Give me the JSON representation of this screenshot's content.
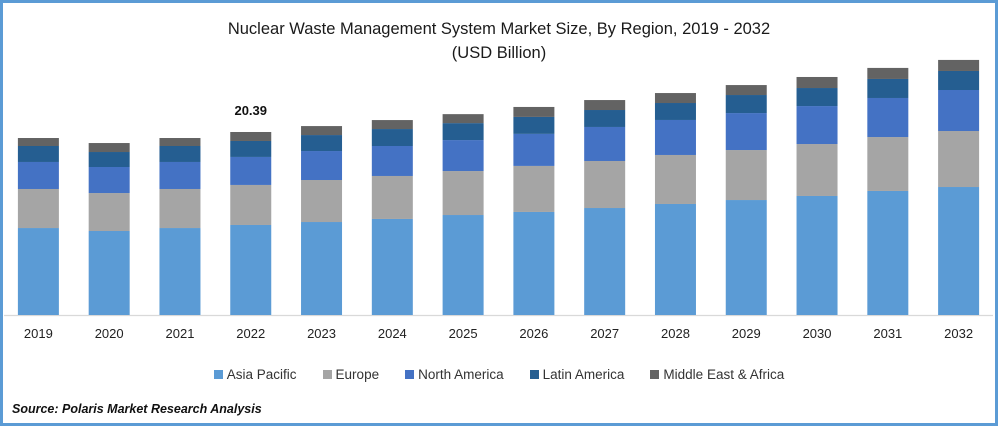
{
  "chart_data": {
    "type": "bar",
    "stacked": true,
    "title": "Nuclear Waste Management System Market Size, By Region, 2019 - 2032",
    "subtitle": "(USD Billion)",
    "xlabel": "",
    "ylabel": "",
    "categories": [
      "2019",
      "2020",
      "2021",
      "2022",
      "2023",
      "2024",
      "2025",
      "2026",
      "2027",
      "2028",
      "2029",
      "2030",
      "2031",
      "2032"
    ],
    "series": [
      {
        "name": "Asia Pacific",
        "color": "#5b9bd5",
        "values": [
          9.69,
          9.36,
          9.69,
          10.03,
          10.36,
          10.7,
          11.14,
          11.48,
          11.92,
          12.37,
          12.81,
          13.26,
          13.82,
          14.26
        ]
      },
      {
        "name": "Europe",
        "color": "#a5a5a5",
        "values": [
          4.35,
          4.23,
          4.35,
          4.46,
          4.68,
          4.79,
          4.9,
          5.13,
          5.24,
          5.46,
          5.57,
          5.79,
          6.01,
          6.24
        ]
      },
      {
        "name": "North America",
        "color": "#4472c4",
        "values": [
          3.01,
          2.9,
          3.01,
          3.12,
          3.23,
          3.34,
          3.45,
          3.57,
          3.79,
          3.9,
          4.12,
          4.23,
          4.35,
          4.57
        ]
      },
      {
        "name": "Latin America",
        "color": "#255e91",
        "values": [
          1.78,
          1.67,
          1.78,
          1.78,
          1.78,
          1.89,
          1.89,
          1.89,
          1.89,
          1.89,
          2.01,
          2.01,
          2.12,
          2.12
        ]
      },
      {
        "name": "Middle East & Africa",
        "color": "#636363",
        "values": [
          0.89,
          1.0,
          0.89,
          1.0,
          1.0,
          1.0,
          1.0,
          1.11,
          1.11,
          1.11,
          1.11,
          1.23,
          1.23,
          1.23
        ]
      }
    ],
    "annotations": [
      {
        "category": "2022",
        "text": "20.39"
      }
    ],
    "ylim": [
      0,
      28.5
    ],
    "grid": false,
    "legend_position": "bottom"
  },
  "source": "Source: Polaris  Market Research Analysis"
}
